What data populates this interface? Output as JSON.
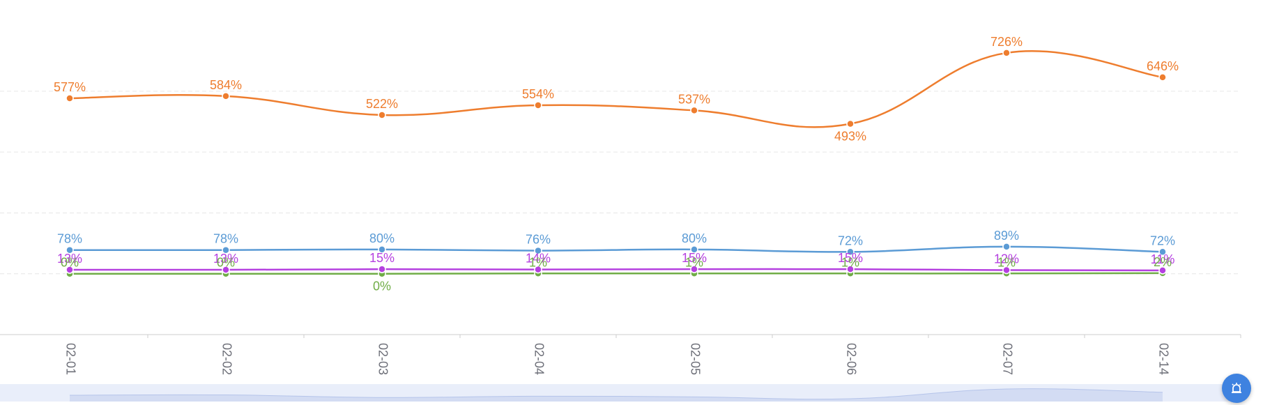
{
  "chart_data": {
    "type": "line",
    "categories": [
      "02-01",
      "02-02",
      "02-03",
      "02-04",
      "02-05",
      "02-06",
      "02-07",
      "02-14"
    ],
    "value_suffix": "%",
    "ylim": [
      -200,
      900
    ],
    "grid": true,
    "series": [
      {
        "color": "#ee7d2e",
        "values": [
          577,
          584,
          522,
          554,
          537,
          493,
          726,
          646
        ],
        "labels": [
          "577%",
          "584%",
          "522%",
          "554%",
          "537%",
          "493%",
          "726%",
          "646%"
        ],
        "label_side": [
          "above",
          "above",
          "above",
          "above",
          "above",
          "below",
          "above",
          "above"
        ]
      },
      {
        "color": "#5b9bd5",
        "values": [
          78,
          78,
          80,
          76,
          80,
          72,
          89,
          72
        ],
        "labels": [
          "78%",
          "78%",
          "80%",
          "76%",
          "80%",
          "72%",
          "89%",
          "72%"
        ],
        "label_side": [
          "above",
          "above",
          "above",
          "above",
          "above",
          "above",
          "above",
          "above"
        ]
      },
      {
        "color": "#b540e0",
        "values": [
          13,
          13,
          15,
          14,
          15,
          15,
          12,
          11
        ],
        "labels": [
          "13%",
          "13%",
          "15%",
          "14%",
          "15%",
          "15%",
          "12%",
          "11%"
        ],
        "label_side": [
          "above",
          "above",
          "above",
          "above",
          "above",
          "above",
          "above",
          "above"
        ]
      },
      {
        "color": "#70ad47",
        "values": [
          0,
          0,
          0,
          1,
          1,
          1,
          1,
          2
        ],
        "labels": [
          "0%",
          "0%",
          "0%",
          "1%",
          "1%",
          "1%",
          "1%",
          "2%"
        ],
        "label_side": [
          "above",
          "above",
          "below",
          "above",
          "above",
          "above",
          "above",
          "above"
        ]
      }
    ]
  },
  "ui": {
    "float_button_icon": "alarm-icon",
    "accent_color": "#3e82e0"
  }
}
